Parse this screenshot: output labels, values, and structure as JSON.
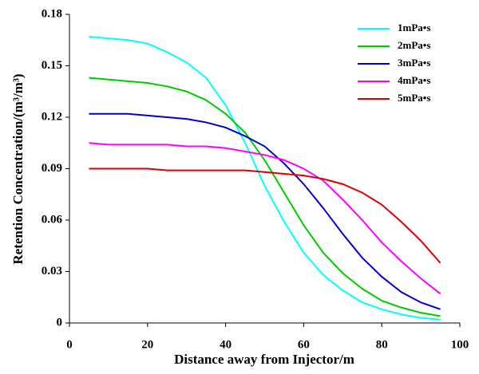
{
  "chart_data": {
    "type": "line",
    "x_label": "Distance away from Injector/m",
    "y_label": "Retention Concentration/(m³/m³)",
    "x": [
      5,
      10,
      15,
      20,
      25,
      30,
      35,
      40,
      45,
      50,
      55,
      60,
      65,
      70,
      75,
      80,
      85,
      90,
      95
    ],
    "series": [
      {
        "name": "1mPa•s",
        "color": "#00ffff",
        "values": [
          0.167,
          0.166,
          0.165,
          0.163,
          0.158,
          0.152,
          0.143,
          0.127,
          0.105,
          0.08,
          0.059,
          0.041,
          0.028,
          0.019,
          0.012,
          0.008,
          0.005,
          0.003,
          0.002
        ]
      },
      {
        "name": "2mPa•s",
        "color": "#00cc00",
        "values": [
          0.143,
          0.142,
          0.141,
          0.14,
          0.138,
          0.135,
          0.13,
          0.122,
          0.111,
          0.095,
          0.076,
          0.057,
          0.041,
          0.029,
          0.02,
          0.013,
          0.009,
          0.006,
          0.004
        ]
      },
      {
        "name": "3mPa•s",
        "color": "#0000cc",
        "values": [
          0.122,
          0.122,
          0.122,
          0.121,
          0.12,
          0.119,
          0.117,
          0.114,
          0.109,
          0.103,
          0.093,
          0.081,
          0.067,
          0.052,
          0.038,
          0.027,
          0.018,
          0.012,
          0.008
        ]
      },
      {
        "name": "4mPa•s",
        "color": "#ff00ff",
        "values": [
          0.105,
          0.104,
          0.104,
          0.104,
          0.104,
          0.103,
          0.103,
          0.102,
          0.1,
          0.098,
          0.095,
          0.09,
          0.083,
          0.072,
          0.06,
          0.047,
          0.036,
          0.026,
          0.017
        ]
      },
      {
        "name": "5mPa•s",
        "color": "#dd0000",
        "values": [
          0.09,
          0.09,
          0.09,
          0.09,
          0.089,
          0.089,
          0.089,
          0.089,
          0.089,
          0.088,
          0.087,
          0.086,
          0.084,
          0.081,
          0.076,
          0.069,
          0.059,
          0.048,
          0.035
        ]
      }
    ],
    "xlim": [
      0,
      100
    ],
    "xticks": [
      0,
      20,
      40,
      60,
      80,
      100
    ],
    "ylim": [
      0,
      0.18
    ],
    "yticks": [
      0,
      0.03,
      0.06,
      0.09,
      0.12,
      0.15,
      0.18
    ],
    "legend": "top-right"
  }
}
